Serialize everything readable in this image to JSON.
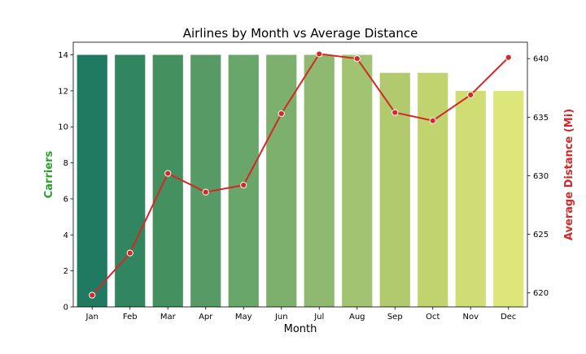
{
  "chart_data": {
    "type": "bar+line",
    "title": "Airlines by Month vs Average Distance",
    "xlabel": "Month",
    "categories": [
      "Jan",
      "Feb",
      "Mar",
      "Apr",
      "May",
      "Jun",
      "Jul",
      "Aug",
      "Sep",
      "Oct",
      "Nov",
      "Dec"
    ],
    "bars": {
      "axis": "left",
      "ylabel": "Carriers",
      "ylabel_color": "#2ca02c",
      "values": [
        14,
        14,
        14,
        14,
        14,
        14,
        14,
        14,
        13,
        13,
        12,
        12
      ],
      "ylim": [
        0,
        14.7
      ],
      "yticks": [
        0,
        2,
        4,
        6,
        8,
        10,
        12,
        14
      ],
      "colors": [
        "#1f7a61",
        "#31865f",
        "#44915f",
        "#579a65",
        "#68a66a",
        "#7cb06c",
        "#8fb970",
        "#a1c372",
        "#b1ca6d",
        "#c0d36e",
        "#cfdd74",
        "#dde67a"
      ]
    },
    "line": {
      "axis": "right",
      "ylabel": "Average Distance (Mi)",
      "ylabel_color": "#d62728",
      "color": "#d62728",
      "values": [
        619.8,
        623.4,
        630.2,
        628.6,
        629.2,
        635.3,
        640.4,
        640.0,
        635.4,
        634.7,
        636.9,
        640.1
      ],
      "ylim": [
        618.8,
        641.4
      ],
      "yticks": [
        620,
        625,
        630,
        635,
        640
      ]
    }
  }
}
